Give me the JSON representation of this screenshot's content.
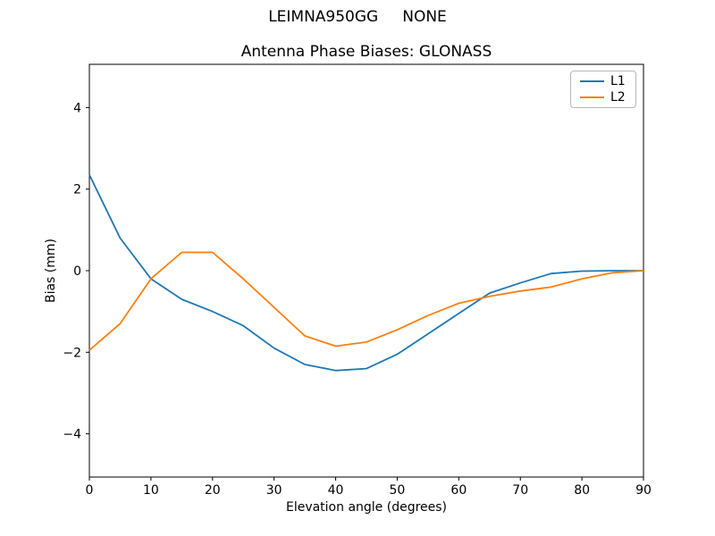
{
  "chart_data": {
    "type": "line",
    "suptitle": "LEIMNA950GG     NONE",
    "title": "Antenna Phase Biases: GLONASS",
    "xlabel": "Elevation angle (degrees)",
    "ylabel": "Bias (mm)",
    "xlim": [
      0,
      90
    ],
    "ylim": [
      -5.06,
      5.06
    ],
    "xticks": [
      0,
      10,
      20,
      30,
      40,
      50,
      60,
      70,
      80,
      90
    ],
    "yticks": [
      -4,
      -2,
      0,
      2,
      4
    ],
    "grid": false,
    "background_color": "#ffffff",
    "spine_color": "#000000",
    "legend": {
      "position": "upper right",
      "entries": [
        "L1",
        "L2"
      ]
    },
    "x": [
      0,
      5,
      10,
      15,
      20,
      25,
      30,
      35,
      40,
      45,
      50,
      55,
      60,
      65,
      70,
      75,
      80,
      85,
      90
    ],
    "series": [
      {
        "name": "L1",
        "color": "#1f77b4",
        "values": [
          2.35,
          0.8,
          -0.2,
          -0.7,
          -1.0,
          -1.35,
          -1.9,
          -2.3,
          -2.45,
          -2.4,
          -2.05,
          -1.55,
          -1.05,
          -0.55,
          -0.3,
          -0.07,
          -0.01,
          0.0,
          0.0
        ]
      },
      {
        "name": "L2",
        "color": "#ff7f0e",
        "values": [
          -1.95,
          -1.3,
          -0.2,
          0.45,
          0.45,
          -0.2,
          -0.9,
          -1.6,
          -1.85,
          -1.75,
          -1.45,
          -1.1,
          -0.8,
          -0.63,
          -0.5,
          -0.4,
          -0.2,
          -0.05,
          0.0
        ]
      }
    ]
  }
}
